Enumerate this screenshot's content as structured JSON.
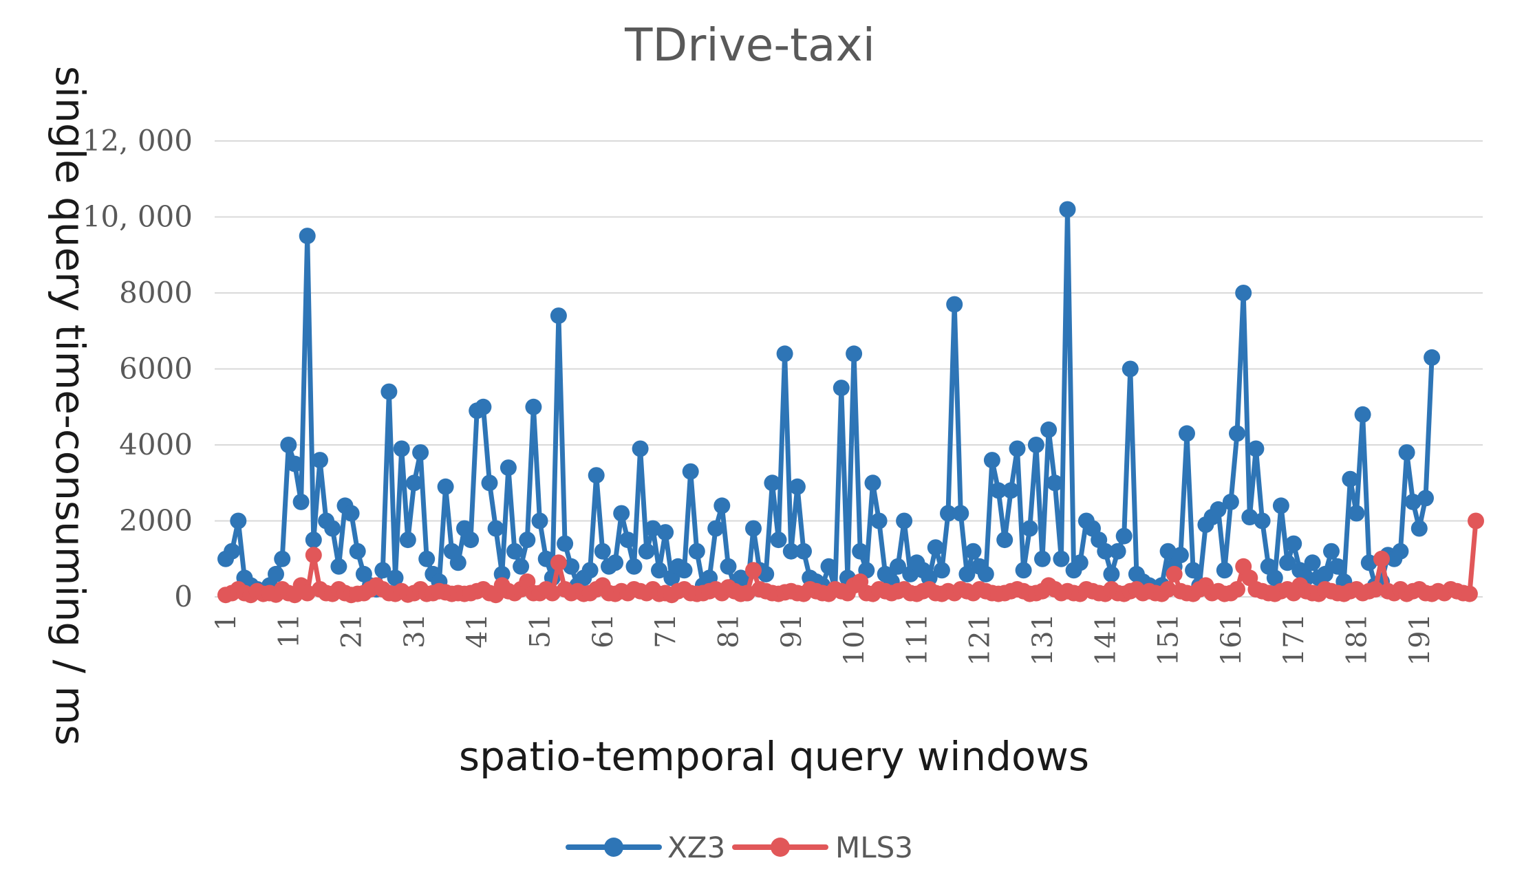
{
  "chart_data": {
    "type": "line",
    "title": "TDrive-taxi",
    "xlabel": "spatio-temporal query windows",
    "ylabel": "single query time-consuming / ms",
    "ylim": [
      0,
      12000
    ],
    "yticks": [
      {
        "value": 0,
        "label": "0"
      },
      {
        "value": 2000,
        "label": "2000"
      },
      {
        "value": 4000,
        "label": "4000"
      },
      {
        "value": 6000,
        "label": "6000"
      },
      {
        "value": 8000,
        "label": "8000"
      },
      {
        "value": 10000,
        "label": "10, 000"
      },
      {
        "value": 12000,
        "label": "12, 000"
      }
    ],
    "xticks": [
      1,
      11,
      21,
      31,
      41,
      51,
      61,
      71,
      81,
      91,
      101,
      111,
      121,
      131,
      141,
      151,
      161,
      171,
      181,
      191
    ],
    "xrange": [
      1,
      200
    ],
    "grid": true,
    "legend_position": "bottom",
    "series": [
      {
        "name": "XZ3",
        "color": "#2e75b6",
        "values": [
          1000,
          1200,
          2000,
          500,
          300,
          200,
          100,
          300,
          600,
          1000,
          4000,
          3500,
          2500,
          9500,
          1500,
          3600,
          2000,
          1800,
          800,
          2400,
          2200,
          1200,
          600,
          300,
          200,
          700,
          5400,
          500,
          3900,
          1500,
          3000,
          3800,
          1000,
          600,
          400,
          2900,
          1200,
          900,
          1800,
          1500,
          4900,
          5000,
          3000,
          1800,
          600,
          3400,
          1200,
          800,
          1500,
          5000,
          2000,
          1000,
          500,
          7400,
          1400,
          800,
          300,
          500,
          700,
          3200,
          1200,
          800,
          900,
          2200,
          1500,
          800,
          3900,
          1200,
          1800,
          700,
          1700,
          500,
          800,
          700,
          3300,
          1200,
          300,
          500,
          1800,
          2400,
          800,
          300,
          500,
          100,
          1800,
          700,
          600,
          3000,
          1500,
          6400,
          1200,
          2900,
          1200,
          500,
          400,
          300,
          800,
          200,
          5500,
          500,
          6400,
          1200,
          700,
          3000,
          2000,
          600,
          400,
          800,
          2000,
          600,
          900,
          700,
          500,
          1300,
          700,
          2200,
          7700,
          2200,
          600,
          1200,
          800,
          600,
          3600,
          2800,
          1500,
          2800,
          3900,
          700,
          1800,
          4000,
          1000,
          4400,
          3000,
          1000,
          10200,
          700,
          900,
          2000,
          1800,
          1500,
          1200,
          600,
          1200,
          1600,
          6000,
          600,
          400,
          300,
          200,
          300,
          1200,
          800,
          1100,
          4300,
          700,
          300,
          1900,
          2100,
          2300,
          700,
          2500,
          4300,
          8000,
          2100,
          3900,
          2000,
          800,
          500,
          2400,
          900,
          1400,
          700,
          500,
          900,
          500,
          600,
          1200,
          800,
          400,
          3100,
          2200,
          4800,
          900,
          300,
          400,
          1100,
          1000,
          1200,
          3800,
          2500,
          1800,
          2600,
          6300
        ]
      },
      {
        "name": "MLS3",
        "color": "#e15759",
        "values": [
          50,
          100,
          200,
          100,
          50,
          150,
          80,
          100,
          60,
          200,
          100,
          50,
          300,
          100,
          1100,
          200,
          100,
          80,
          200,
          100,
          50,
          80,
          100,
          200,
          300,
          200,
          100,
          80,
          150,
          60,
          100,
          200,
          80,
          100,
          150,
          120,
          80,
          100,
          80,
          100,
          150,
          200,
          100,
          50,
          300,
          150,
          100,
          200,
          400,
          100,
          100,
          200,
          100,
          900,
          200,
          100,
          150,
          80,
          100,
          200,
          300,
          100,
          80,
          150,
          100,
          200,
          150,
          100,
          200,
          80,
          100,
          50,
          150,
          200,
          100,
          80,
          100,
          150,
          200,
          100,
          250,
          150,
          80,
          100,
          700,
          200,
          150,
          100,
          80,
          120,
          150,
          100,
          80,
          200,
          150,
          100,
          80,
          200,
          150,
          100,
          300,
          400,
          100,
          80,
          200,
          150,
          100,
          150,
          200,
          100,
          80,
          150,
          200,
          100,
          80,
          150,
          100,
          200,
          150,
          100,
          200,
          150,
          100,
          80,
          100,
          150,
          200,
          150,
          80,
          100,
          150,
          300,
          200,
          100,
          150,
          100,
          80,
          200,
          150,
          100,
          80,
          200,
          100,
          80,
          150,
          200,
          100,
          150,
          100,
          80,
          200,
          600,
          150,
          100,
          80,
          200,
          300,
          100,
          150,
          80,
          100,
          200,
          800,
          500,
          200,
          150,
          100,
          80,
          150,
          200,
          100,
          300,
          150,
          100,
          80,
          200,
          150,
          100,
          80,
          150,
          200,
          100,
          150,
          200,
          1000,
          150,
          100,
          200,
          80,
          150,
          200,
          100,
          80,
          150,
          100,
          200,
          150,
          100,
          80,
          2000
        ]
      }
    ]
  }
}
